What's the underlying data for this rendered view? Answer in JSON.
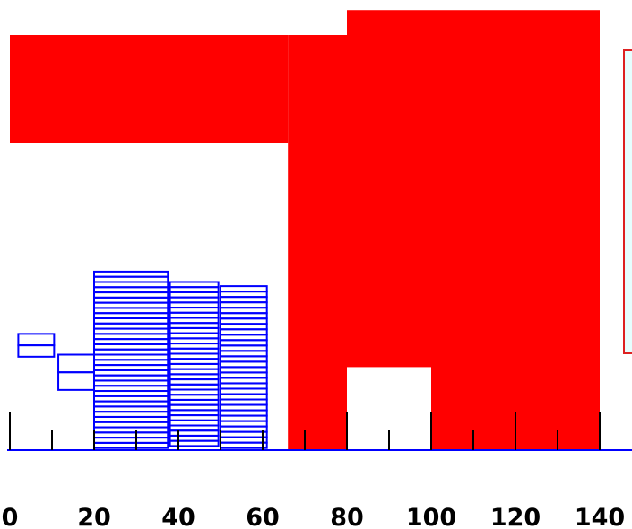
{
  "chart_data": {
    "type": "bar",
    "xlim": [
      0,
      150
    ],
    "x_ticks": [
      "0",
      "20",
      "40",
      "60",
      "80",
      "100",
      "120",
      "140"
    ],
    "x_tick_values": [
      0,
      20,
      40,
      60,
      80,
      100,
      120,
      140
    ],
    "minor_tick_values": [
      0,
      10,
      20,
      30,
      40,
      50,
      60,
      70,
      80,
      90,
      100,
      110,
      120,
      130,
      140
    ],
    "major_tick_values": [
      0,
      80,
      100,
      120,
      140
    ],
    "legend_position": "right",
    "colors": {
      "red_fill": "#ff0000",
      "blue_outline": "#0000ff",
      "axis_line": "#0000ff",
      "ticks": "#000000",
      "legend_border": "#dd2222",
      "legend_fill": "#e6ffff"
    },
    "red_region": {
      "color": "#ff0000",
      "steps": [
        {
          "x0": 0,
          "x1": 66,
          "top": 100,
          "bottom": 74
        },
        {
          "x0": 66,
          "x1": 80,
          "top": 100,
          "bottom": 0
        },
        {
          "x0": 80,
          "x1": 140,
          "top": 106,
          "bottom": 0
        }
      ],
      "notch": {
        "x0": 80,
        "x1": 100,
        "top": 20,
        "bottom": 0
      }
    },
    "blue_stacks": [
      {
        "x0": 2,
        "x1": 10.5,
        "bottom": 22.5,
        "top": 28,
        "boxes": 2
      },
      {
        "x0": 11.5,
        "x1": 20,
        "bottom": 14.5,
        "top": 23,
        "boxes": 2
      },
      {
        "x0": 20,
        "x1": 37.5,
        "bottom": 0.5,
        "top": 43,
        "boxes": 34
      },
      {
        "x0": 38,
        "x1": 49.5,
        "bottom": 1,
        "top": 40.5,
        "boxes": 32
      },
      {
        "x0": 50,
        "x1": 61,
        "bottom": 0.5,
        "top": 39.5,
        "boxes": 30
      }
    ]
  }
}
